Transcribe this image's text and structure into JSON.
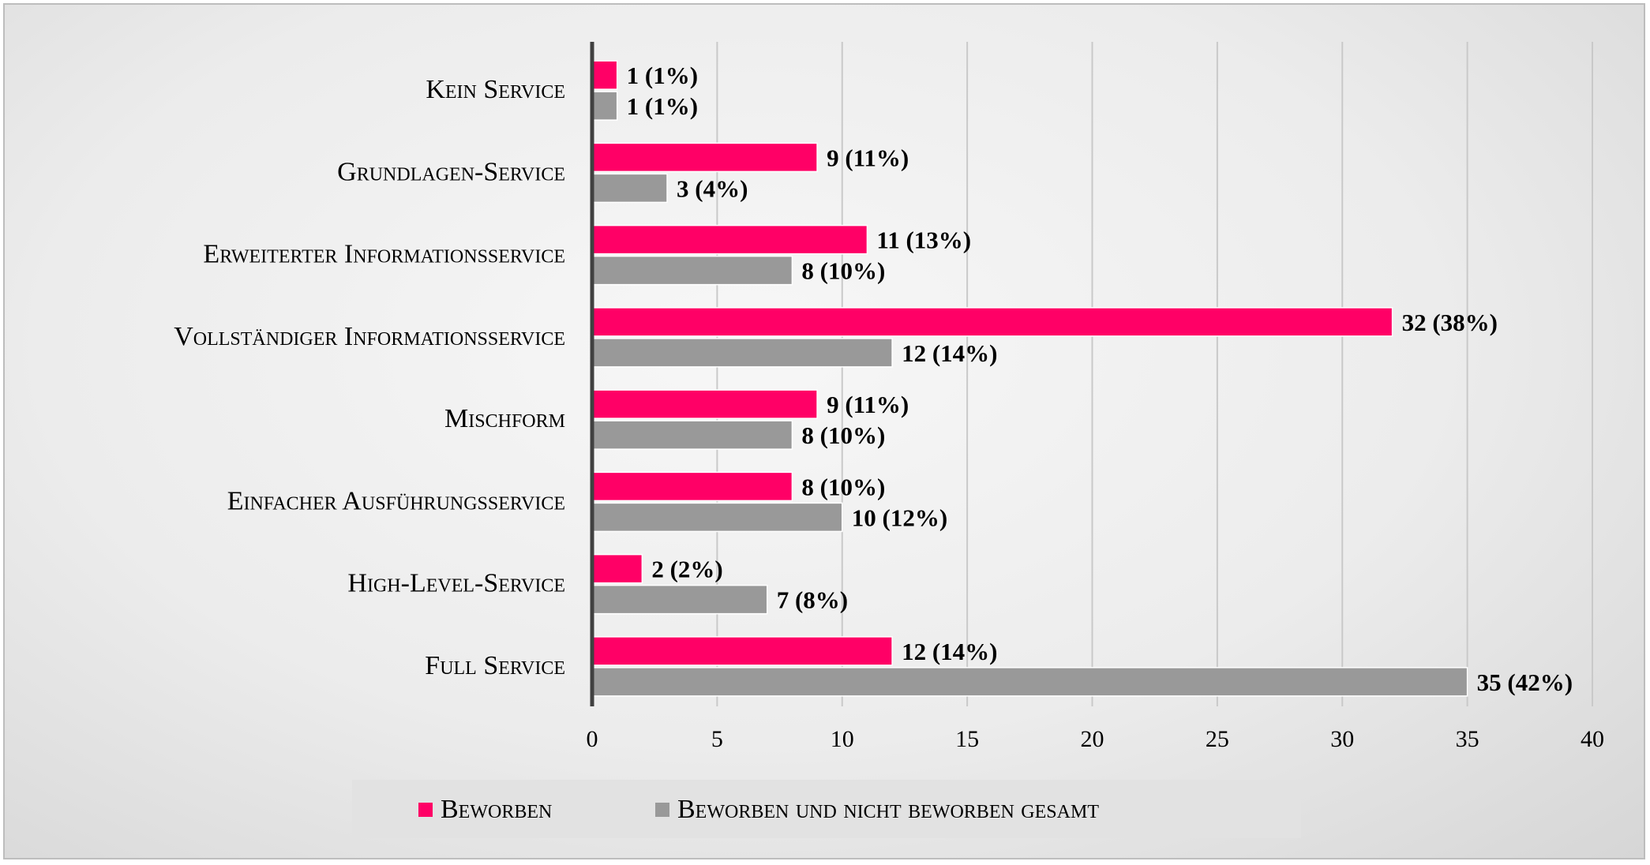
{
  "chart_data": {
    "type": "bar",
    "orientation": "horizontal",
    "categories": [
      "Kein Service",
      "Grundlagen-Service",
      "Erweiterter Informationsservice",
      "Vollständiger Informationsservice",
      "Mischform",
      "Einfacher Ausführungsservice",
      "High-Level-Service",
      "Full Service"
    ],
    "series": [
      {
        "name": "Beworben",
        "color": "#ff0066",
        "values": [
          1,
          9,
          11,
          32,
          9,
          8,
          2,
          12
        ],
        "labels": [
          "1 (1%)",
          "9 (11%)",
          "11 (13%)",
          "32 (38%)",
          "9 (11%)",
          "8 (10%)",
          "2 (2%)",
          "12 (14%)"
        ]
      },
      {
        "name": "Beworben und nicht beworben gesamt",
        "color": "#999999",
        "values": [
          1,
          3,
          8,
          12,
          8,
          10,
          7,
          35
        ],
        "labels": [
          "1 (1%)",
          "3 (4%)",
          "8 (10%)",
          "12 (14%)",
          "8 (10%)",
          "10 (12%)",
          "7 (8%)",
          "35 (42%)"
        ]
      }
    ],
    "xlim": [
      0,
      40
    ],
    "xticks": [
      "0",
      "5",
      "10",
      "15",
      "20",
      "25",
      "30",
      "35",
      "40"
    ],
    "xlabel": "",
    "ylabel": "",
    "title": "",
    "grid": true,
    "legend_position": "bottom"
  }
}
